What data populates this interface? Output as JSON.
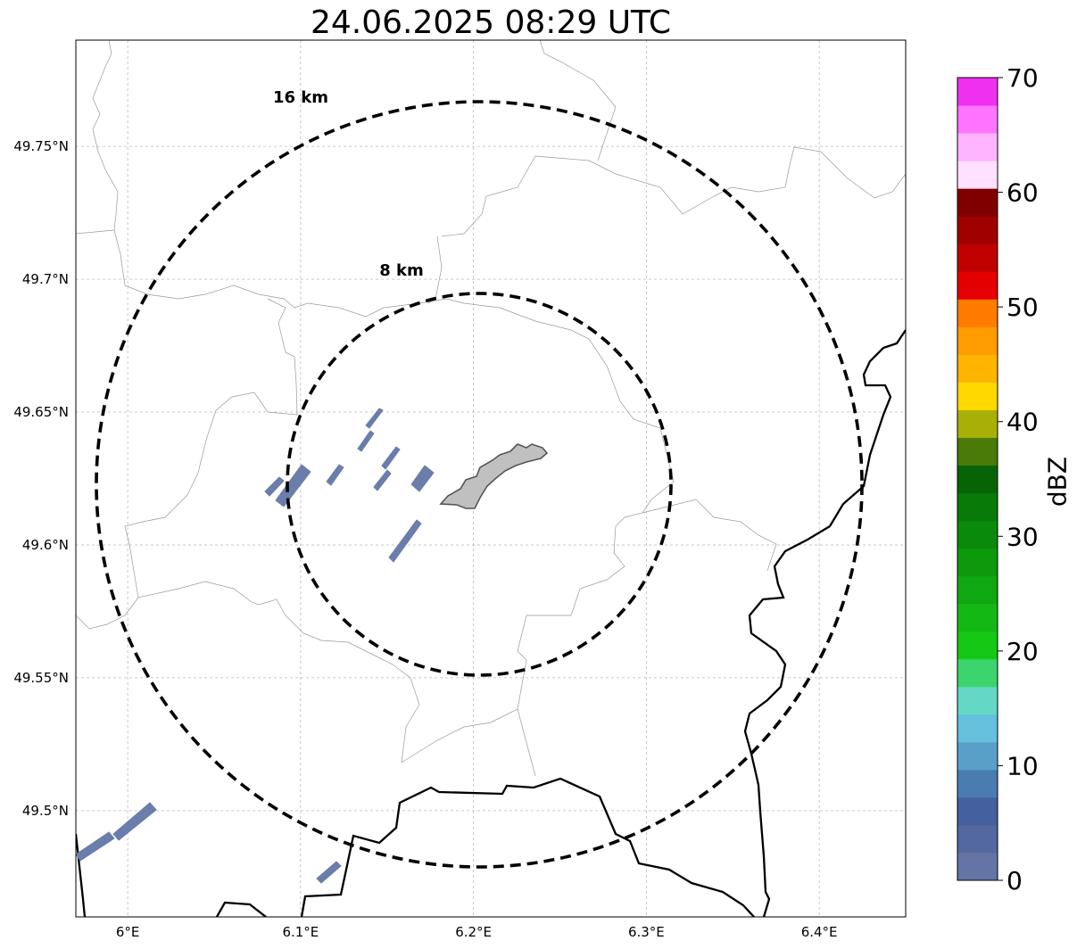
{
  "title": "24.06.2025 08:29 UTC",
  "map": {
    "lon_range": [
      5.97,
      6.45
    ],
    "lat_range": [
      49.46,
      49.79
    ],
    "x_ticks": [
      {
        "value": 6.0,
        "label": "6°E"
      },
      {
        "value": 6.1,
        "label": "6.1°E"
      },
      {
        "value": 6.2,
        "label": "6.2°E"
      },
      {
        "value": 6.3,
        "label": "6.3°E"
      },
      {
        "value": 6.4,
        "label": "6.4°E"
      }
    ],
    "y_ticks": [
      {
        "value": 49.5,
        "label": "49.5°N"
      },
      {
        "value": 49.55,
        "label": "49.55°N"
      },
      {
        "value": 49.6,
        "label": "49.6°N"
      },
      {
        "value": 49.65,
        "label": "49.65°N"
      },
      {
        "value": 49.7,
        "label": "49.7°N"
      },
      {
        "value": 49.75,
        "label": "49.75°N"
      }
    ],
    "gridlines": true,
    "center": {
      "lon": 6.203,
      "lat": 49.623
    },
    "range_rings": [
      {
        "radius_km": 16,
        "label": "16 km"
      },
      {
        "radius_km": 8,
        "label": "8 km"
      }
    ],
    "colors": {
      "ring": "#000000",
      "echo": "#6a7dab",
      "city_fill": "#c0c0c0",
      "border": "#000000",
      "admin": "#999999"
    }
  },
  "colorbar": {
    "label": "dBZ",
    "min": 0,
    "max": 70,
    "tick_labels": [
      "0",
      "10",
      "20",
      "30",
      "40",
      "50",
      "60",
      "70"
    ],
    "bands": [
      "#6474a4",
      "#5468a0",
      "#44609e",
      "#4a7cb0",
      "#58a0c8",
      "#64c0dc",
      "#64d8c4",
      "#3cd46c",
      "#14c814",
      "#14b814",
      "#10a810",
      "#0c9a0c",
      "#0a8a0a",
      "#087a08",
      "#066406",
      "#4a7a08",
      "#a8b008",
      "#ffd800",
      "#ffb400",
      "#ff9c00",
      "#ff7c00",
      "#e40000",
      "#c00000",
      "#a00000",
      "#800000",
      "#ffe0ff",
      "#ffb4ff",
      "#ff74ff",
      "#f030f0"
    ]
  }
}
